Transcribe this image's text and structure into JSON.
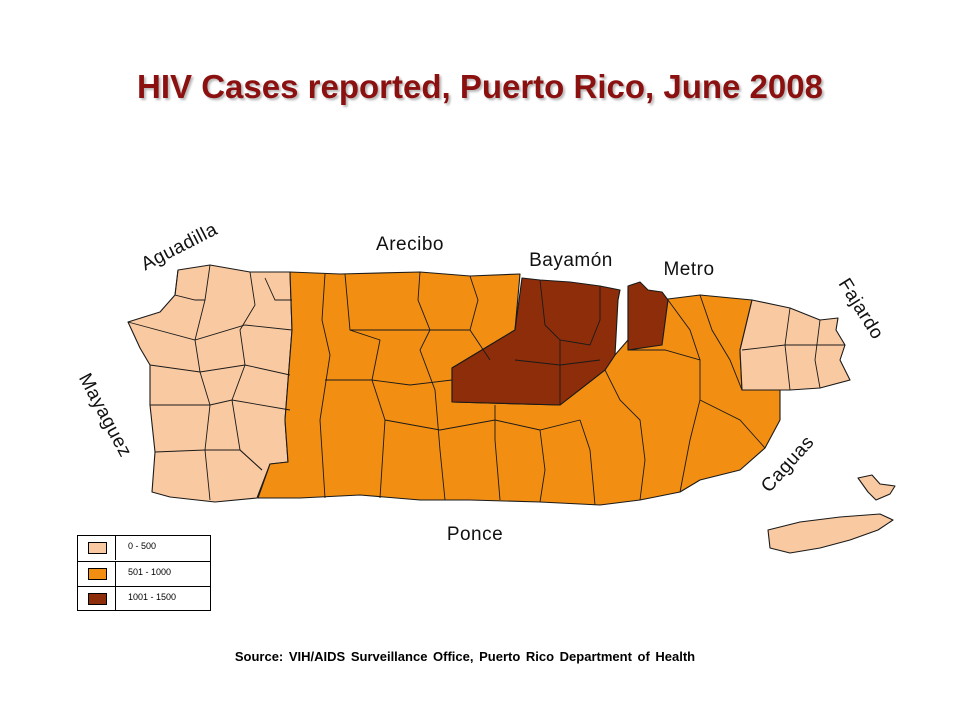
{
  "title": "HIV Cases reported, Puerto Rico, June 2008",
  "source": "Source: VIH/AIDS Surveillance Office, Puerto Rico Department of Health",
  "colors": {
    "class_0_500": "#f9c9a1",
    "class_501_1000": "#f28e12",
    "class_1001_1500": "#8e2d09"
  },
  "legend": [
    {
      "label": "0 - 500",
      "color": "#f9c9a1"
    },
    {
      "label": "501 - 1000",
      "color": "#f28e12"
    },
    {
      "label": "1001 - 1500",
      "color": "#8e2d09"
    }
  ],
  "regions": {
    "aguadilla": {
      "label": "Aguadilla",
      "class": "0 - 500"
    },
    "mayaguez": {
      "label": "Mayaguez",
      "class": "0 - 500"
    },
    "arecibo": {
      "label": "Arecibo",
      "class": "501 - 1000"
    },
    "bayamon": {
      "label": "Bayamón",
      "class": "1001 - 1500"
    },
    "metro": {
      "label": "Metro",
      "class": "1001 - 1500"
    },
    "fajardo": {
      "label": "Fajardo",
      "class": "0 - 500"
    },
    "caguas": {
      "label": "Caguas",
      "class": "501 - 1000"
    },
    "ponce": {
      "label": "Ponce",
      "class": "501 - 1000"
    }
  }
}
